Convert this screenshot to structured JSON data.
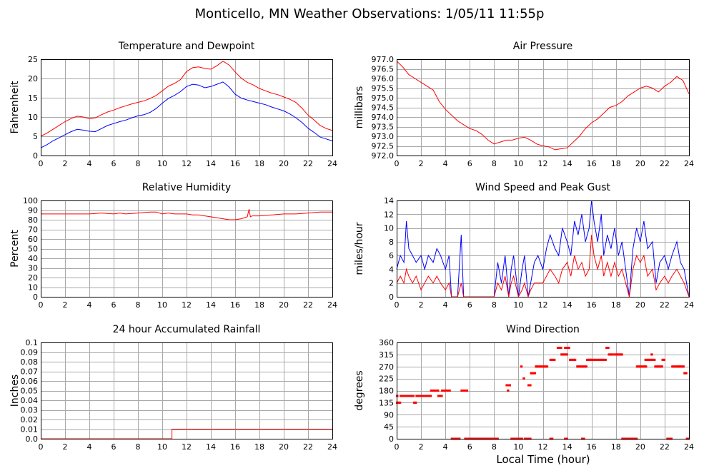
{
  "page": {
    "title": "Monticello, MN Weather Observations: 1/05/11 11:55p",
    "xlabel": "Local Time (hour)"
  },
  "colors": {
    "red": "#ff0000",
    "blue": "#0000ff",
    "grid": "#a8a8a8"
  },
  "chart_data": [
    {
      "id": "temp",
      "type": "line",
      "title": "Temperature and Dewpoint",
      "ylabel": "Fahrenheit",
      "xlim": [
        0,
        24
      ],
      "ylim": [
        0,
        25
      ],
      "xticks": [
        "0",
        "2",
        "4",
        "6",
        "8",
        "10",
        "12",
        "14",
        "16",
        "18",
        "20",
        "22",
        "24"
      ],
      "yticks": [
        "0",
        "5",
        "10",
        "15",
        "20",
        "25"
      ],
      "grid": true,
      "series": [
        {
          "color": "#ff0000",
          "x": [
            0,
            0.5,
            1,
            1.5,
            2,
            2.5,
            3,
            3.5,
            4,
            4.5,
            5,
            5.5,
            6,
            6.5,
            7,
            7.5,
            8,
            8.5,
            9,
            9.5,
            10,
            10.5,
            11,
            11.5,
            12,
            12.5,
            13,
            13.5,
            14,
            14.5,
            15,
            15.5,
            16,
            16.5,
            17,
            17.5,
            18,
            18.5,
            19,
            19.5,
            20,
            20.5,
            21,
            21.5,
            22,
            22.5,
            23,
            23.5,
            24
          ],
          "y": [
            5,
            5.8,
            6.8,
            7.8,
            8.8,
            9.6,
            10.2,
            10,
            9.6,
            9.8,
            10.6,
            11.3,
            11.8,
            12.4,
            12.9,
            13.4,
            13.8,
            14.2,
            14.8,
            15.6,
            16.8,
            18,
            18.7,
            19.7,
            21.8,
            22.8,
            23,
            22.6,
            22.4,
            23.3,
            24.5,
            23.5,
            21.7,
            20.1,
            19,
            18.3,
            17.4,
            16.8,
            16.2,
            15.8,
            15.2,
            14.6,
            13.8,
            12.3,
            10.5,
            9.2,
            7.8,
            7,
            6.5
          ]
        },
        {
          "color": "#0000ff",
          "x": [
            0,
            0.5,
            1,
            1.5,
            2,
            2.5,
            3,
            3.5,
            4,
            4.5,
            5,
            5.5,
            6,
            6.5,
            7,
            7.5,
            8,
            8.5,
            9,
            9.5,
            10,
            10.5,
            11,
            11.5,
            12,
            12.5,
            13,
            13.5,
            14,
            14.5,
            15,
            15.5,
            16,
            16.5,
            17,
            17.5,
            18,
            18.5,
            19,
            19.5,
            20,
            20.5,
            21,
            21.5,
            22,
            22.5,
            23,
            23.5,
            24
          ],
          "y": [
            2,
            2.8,
            3.8,
            4.6,
            5.4,
            6.2,
            6.8,
            6.6,
            6.3,
            6.2,
            7,
            7.8,
            8.3,
            8.8,
            9.2,
            9.8,
            10.3,
            10.6,
            11.2,
            12.2,
            13.6,
            14.8,
            15.6,
            16.6,
            17.9,
            18.5,
            18.3,
            17.6,
            17.9,
            18.5,
            19.1,
            17.8,
            15.9,
            14.9,
            14.4,
            14,
            13.6,
            13.2,
            12.6,
            12.1,
            11.6,
            10.8,
            9.8,
            8.6,
            7.1,
            6,
            4.8,
            4.3,
            3.8
          ]
        }
      ]
    },
    {
      "id": "press",
      "type": "line",
      "title": "Air Pressure",
      "ylabel": "millibars",
      "xlim": [
        0,
        24
      ],
      "ylim": [
        972.0,
        977.0
      ],
      "xticks": [
        "0",
        "2",
        "4",
        "6",
        "8",
        "10",
        "12",
        "14",
        "16",
        "18",
        "20",
        "22",
        "24"
      ],
      "yticks": [
        "972.0",
        "972.5",
        "973.0",
        "973.5",
        "974.0",
        "974.5",
        "975.0",
        "975.5",
        "976.0",
        "976.5",
        "977.0"
      ],
      "grid": true,
      "series": [
        {
          "color": "#ff0000",
          "x": [
            0,
            0.5,
            1,
            1.5,
            2,
            2.5,
            3,
            3.5,
            4,
            4.5,
            5,
            5.5,
            6,
            6.5,
            7,
            7.5,
            8,
            8.5,
            9,
            9.5,
            10,
            10.5,
            11,
            11.5,
            12,
            12.5,
            13,
            13.5,
            14,
            14.5,
            15,
            15.5,
            16,
            16.5,
            17,
            17.5,
            18,
            18.5,
            19,
            19.5,
            20,
            20.5,
            21,
            21.5,
            22,
            22.5,
            23,
            23.5,
            24
          ],
          "y": [
            976.9,
            976.6,
            976.2,
            976,
            975.8,
            975.6,
            975.4,
            974.8,
            974.4,
            974.1,
            973.8,
            973.6,
            973.4,
            973.3,
            973.1,
            972.8,
            972.6,
            972.7,
            972.8,
            972.8,
            972.9,
            972.95,
            972.8,
            972.6,
            972.5,
            972.45,
            972.3,
            972.35,
            972.4,
            972.7,
            973,
            973.4,
            973.7,
            973.9,
            974.2,
            974.5,
            974.6,
            974.8,
            975.1,
            975.3,
            975.5,
            975.6,
            975.5,
            975.3,
            975.6,
            975.8,
            976.1,
            975.9,
            975.2
          ]
        }
      ]
    },
    {
      "id": "rh",
      "type": "line",
      "title": "Relative Humidity",
      "ylabel": "Percent",
      "xlim": [
        0,
        24
      ],
      "ylim": [
        0,
        100
      ],
      "xticks": [
        "0",
        "2",
        "4",
        "6",
        "8",
        "10",
        "12",
        "14",
        "16",
        "18",
        "20",
        "22",
        "24"
      ],
      "yticks": [
        "0",
        "10",
        "20",
        "30",
        "40",
        "50",
        "60",
        "70",
        "80",
        "90",
        "100"
      ],
      "grid": true,
      "series": [
        {
          "color": "#ff0000",
          "x": [
            0,
            1,
            2,
            3,
            4,
            5,
            6,
            6.5,
            7,
            8,
            9,
            9.5,
            10,
            10.5,
            11,
            12,
            12.5,
            13,
            13.5,
            14,
            14.5,
            15,
            15.5,
            16,
            16.5,
            17,
            17.15,
            17.25,
            17.4,
            18,
            19,
            20,
            21,
            22,
            23,
            24
          ],
          "y": [
            86,
            86,
            86,
            86,
            86,
            87,
            86,
            87,
            86,
            87,
            88,
            88,
            86,
            87,
            86,
            86,
            85,
            85,
            84,
            83,
            82,
            81,
            80,
            80,
            81,
            83,
            91,
            83,
            84,
            84,
            85,
            86,
            86,
            87,
            88,
            88
          ]
        }
      ]
    },
    {
      "id": "wind",
      "type": "line",
      "title": "Wind Speed and Peak Gust",
      "ylabel": "miles/hour",
      "xlim": [
        0,
        24
      ],
      "ylim": [
        0,
        14
      ],
      "xticks": [
        "0",
        "2",
        "4",
        "6",
        "8",
        "10",
        "12",
        "14",
        "16",
        "18",
        "20",
        "22",
        "24"
      ],
      "yticks": [
        "0",
        "2",
        "4",
        "6",
        "8",
        "10",
        "12",
        "14"
      ],
      "grid": true,
      "series": [
        {
          "color": "#0000ff",
          "x": [
            0,
            0.3,
            0.6,
            0.8,
            1,
            1.3,
            1.6,
            2,
            2.3,
            2.6,
            3,
            3.3,
            3.6,
            4,
            4.3,
            4.5,
            5,
            5.3,
            5.5,
            6,
            7,
            8,
            8.3,
            8.6,
            8.9,
            9.2,
            9.4,
            9.6,
            10,
            10.3,
            10.5,
            10.8,
            11,
            11.3,
            11.6,
            12,
            12.3,
            12.6,
            13,
            13.3,
            13.6,
            14,
            14.3,
            14.6,
            14.9,
            15.2,
            15.5,
            15.8,
            16,
            16.2,
            16.5,
            16.8,
            17,
            17.3,
            17.6,
            17.9,
            18.2,
            18.5,
            18.8,
            19.1,
            19.4,
            19.7,
            20,
            20.3,
            20.6,
            21,
            21.3,
            21.6,
            22,
            22.3,
            22.6,
            23,
            23.3,
            23.6,
            24
          ],
          "y": [
            4,
            6,
            5,
            11,
            7,
            6,
            5,
            6,
            4,
            6,
            5,
            7,
            6,
            4,
            6,
            0,
            0,
            9,
            0,
            0,
            0,
            0,
            5,
            2,
            6,
            0,
            4,
            6,
            0,
            4,
            6,
            0,
            2,
            5,
            6,
            4,
            7,
            9,
            7,
            6,
            10,
            8,
            6,
            11,
            9,
            12,
            8,
            10,
            14,
            11,
            8,
            12,
            6,
            9,
            7,
            10,
            6,
            8,
            4,
            0,
            7,
            10,
            8,
            11,
            7,
            8,
            2,
            5,
            6,
            4,
            6,
            8,
            5,
            4,
            0
          ]
        },
        {
          "color": "#ff0000",
          "x": [
            0,
            0.3,
            0.6,
            0.8,
            1,
            1.3,
            1.6,
            2,
            2.3,
            2.6,
            3,
            3.3,
            3.6,
            4,
            4.3,
            4.5,
            5,
            5.3,
            5.5,
            6,
            7,
            8,
            8.3,
            8.6,
            8.9,
            9.2,
            9.4,
            9.6,
            10,
            10.3,
            10.5,
            10.8,
            11,
            11.3,
            11.6,
            12,
            12.3,
            12.6,
            13,
            13.3,
            13.6,
            14,
            14.3,
            14.6,
            14.9,
            15.2,
            15.5,
            15.8,
            16,
            16.2,
            16.5,
            16.8,
            17,
            17.3,
            17.6,
            17.9,
            18.2,
            18.5,
            18.8,
            19.1,
            19.4,
            19.7,
            20,
            20.3,
            20.6,
            21,
            21.3,
            21.6,
            22,
            22.3,
            22.6,
            23,
            23.3,
            23.6,
            24
          ],
          "y": [
            2,
            3,
            2,
            4,
            3,
            2,
            3,
            1,
            2,
            3,
            2,
            3,
            2,
            1,
            2,
            0,
            0,
            2,
            0,
            0,
            0,
            0,
            2,
            1,
            3,
            0,
            2,
            3,
            0,
            1,
            2,
            0,
            1,
            2,
            2,
            2,
            3,
            4,
            3,
            2,
            4,
            5,
            3,
            6,
            4,
            5,
            3,
            4,
            9,
            6,
            4,
            6,
            3,
            5,
            3,
            5,
            3,
            4,
            2,
            0,
            4,
            6,
            5,
            6,
            3,
            4,
            1,
            2,
            3,
            2,
            3,
            4,
            3,
            2,
            0
          ]
        }
      ]
    },
    {
      "id": "rain",
      "type": "line",
      "title": "24 hour Accumulated Rainfall",
      "ylabel": "Inches",
      "xlim": [
        0,
        24
      ],
      "ylim": [
        0,
        0.1
      ],
      "xticks": [
        "0",
        "2",
        "4",
        "6",
        "8",
        "10",
        "12",
        "14",
        "16",
        "18",
        "20",
        "22",
        "24"
      ],
      "yticks": [
        "0.0",
        "0.01",
        "0.02",
        "0.03",
        "0.04",
        "0.05",
        "0.06",
        "0.07",
        "0.08",
        "0.09",
        "0.1"
      ],
      "grid": true,
      "series": [
        {
          "color": "#ff0000",
          "x": [
            0,
            10.8,
            10.8,
            24
          ],
          "y": [
            0,
            0,
            0.01,
            0.01
          ]
        }
      ]
    },
    {
      "id": "wdir",
      "type": "scatter",
      "title": "Wind Direction",
      "ylabel": "degrees",
      "xlabel": "Local Time (hour)",
      "xlim": [
        0,
        24
      ],
      "ylim": [
        0,
        360
      ],
      "xticks": [
        "0",
        "2",
        "4",
        "6",
        "8",
        "10",
        "12",
        "14",
        "16",
        "18",
        "20",
        "22",
        "24"
      ],
      "yticks": [
        "0",
        "45",
        "90",
        "135",
        "180",
        "225",
        "270",
        "315",
        "360"
      ],
      "grid": true,
      "segments": [
        [
          0,
          0.1,
          160
        ],
        [
          0.1,
          0.3,
          135
        ],
        [
          0.3,
          1.4,
          160
        ],
        [
          1.4,
          1.6,
          135
        ],
        [
          1.6,
          2.8,
          160
        ],
        [
          2.8,
          3.4,
          180
        ],
        [
          3.4,
          3.7,
          160
        ],
        [
          3.7,
          4,
          180
        ],
        [
          4,
          4.4,
          180
        ],
        [
          4.5,
          5.2,
          0
        ],
        [
          5.3,
          5.8,
          180
        ],
        [
          5.6,
          8.3,
          0
        ],
        [
          8.3,
          9
        ],
        [
          9,
          9.3,
          200
        ],
        [
          9.4,
          9.6,
          0
        ],
        [
          10,
          10.3,
          0
        ],
        [
          10.5,
          11,
          0
        ],
        [
          10.8,
          11,
          200
        ],
        [
          11,
          11.4,
          245
        ],
        [
          11.4,
          12.4,
          270
        ],
        [
          12.6,
          13,
          295
        ],
        [
          13.2,
          13.5,
          340
        ],
        [
          13.5,
          14,
          315
        ],
        [
          13.8,
          14.2,
          340
        ],
        [
          14.2,
          14.6,
          295
        ],
        [
          14.8,
          15.6,
          270
        ],
        [
          15.6,
          17.2,
          295
        ],
        [
          17.2,
          17.4,
          340
        ],
        [
          17.4,
          17.8,
          315
        ],
        [
          17.9,
          18.5,
          315
        ],
        [
          18.5,
          19.7,
          0
        ],
        [
          19.7,
          20.5,
          270
        ],
        [
          20.4,
          21.2,
          295
        ],
        [
          21.2,
          21.8,
          270
        ],
        [
          21.8,
          22,
          295
        ],
        [
          22.2,
          22.6,
          0
        ],
        [
          22.6,
          23.6,
          270
        ],
        [
          23.6,
          23.8,
          245
        ],
        [
          23.8,
          24,
          0
        ],
        [
          0,
          0.05,
          135
        ],
        [
          0.4,
          0.5,
          160
        ],
        [
          8.2,
          8.3,
          0
        ],
        [
          9.6,
          9.9,
          0
        ],
        [
          12.6,
          12.8,
          0
        ],
        [
          13.8,
          14.0,
          0
        ],
        [
          15.2,
          15.4,
          0
        ],
        [
          10.2,
          10.3,
          270
        ],
        [
          10.4,
          10.5,
          225
        ],
        [
          9.1,
          9.2,
          180
        ],
        [
          0.3,
          0.35,
          160
        ],
        [
          19.1,
          19.4,
          0
        ],
        [
          14.6,
          14.7,
          295
        ],
        [
          15.8,
          16.0,
          295
        ],
        [
          20.9,
          21.0,
          315
        ],
        [
          23.1,
          23.2,
          270
        ]
      ]
    }
  ]
}
